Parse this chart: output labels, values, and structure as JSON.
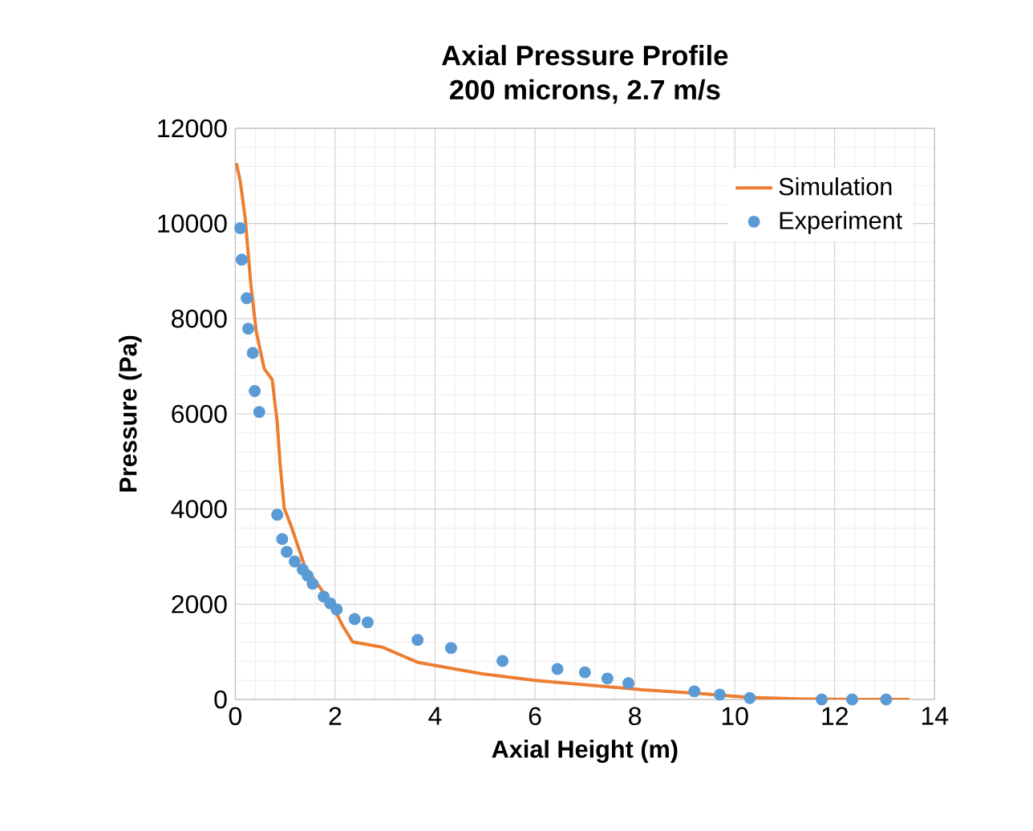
{
  "chart_data": {
    "type": "line",
    "title": "Axial Pressure Profile",
    "subtitle": "200 microns, 2.7 m/s",
    "xlabel": "Axial Height (m)",
    "ylabel": "Pressure (Pa)",
    "xlim": [
      0,
      14
    ],
    "ylim": [
      0,
      12000
    ],
    "xticks": [
      0,
      2,
      4,
      6,
      8,
      10,
      12,
      14
    ],
    "yticks": [
      0,
      2000,
      4000,
      6000,
      8000,
      10000,
      12000
    ],
    "grid": true,
    "legend": "top right",
    "series": [
      {
        "name": "Simulation",
        "color": "#ed7d31",
        "marker": "none",
        "x": [
          0.02,
          0.1,
          0.2,
          0.31,
          0.42,
          0.58,
          0.74,
          0.8,
          0.84,
          0.9,
          0.98,
          1.12,
          1.39,
          1.71,
          2.03,
          2.15,
          2.35,
          2.94,
          3.65,
          4.94,
          6.0,
          7.1,
          8.16,
          9.23,
          10.3,
          11.4,
          12.5,
          13.5
        ],
        "values": [
          11270,
          10890,
          10100,
          8740,
          7730,
          6950,
          6720,
          6170,
          5830,
          4920,
          4020,
          3640,
          2800,
          2330,
          1800,
          1550,
          1210,
          1100,
          780,
          540,
          400,
          300,
          200,
          130,
          40,
          10,
          0,
          0
        ]
      },
      {
        "name": "Experiment",
        "type": "scatter",
        "color": "#5b9bd5",
        "marker": "circle",
        "x": [
          0.1,
          0.13,
          0.23,
          0.26,
          0.35,
          0.39,
          0.48,
          0.84,
          0.94,
          1.03,
          1.19,
          1.35,
          1.45,
          1.55,
          1.77,
          1.9,
          2.03,
          2.39,
          2.65,
          3.65,
          4.32,
          5.35,
          6.45,
          7.0,
          7.45,
          7.87,
          9.19,
          9.7,
          10.3,
          11.74,
          12.35,
          13.03
        ],
        "values": [
          9900,
          9240,
          8430,
          7790,
          7280,
          6480,
          6040,
          3880,
          3370,
          3100,
          2900,
          2730,
          2600,
          2430,
          2160,
          2020,
          1890,
          1690,
          1620,
          1250,
          1080,
          810,
          640,
          570,
          440,
          340,
          170,
          100,
          30,
          0,
          0,
          0
        ]
      }
    ]
  }
}
